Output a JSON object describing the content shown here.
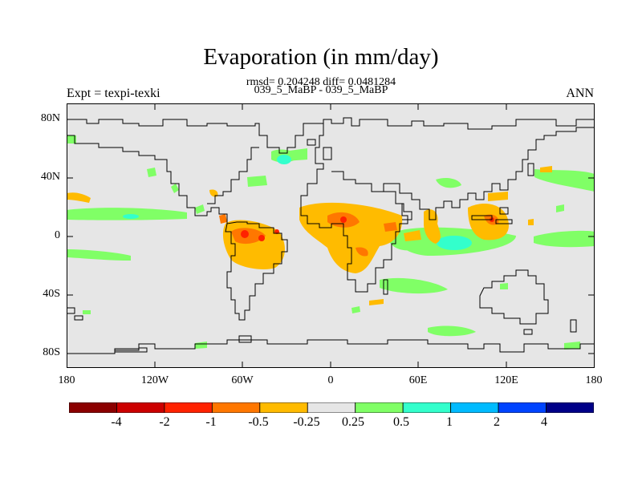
{
  "title": "Evaporation (in mm/day)",
  "stats_line": "rmsd= 0.204248 diff= 0.0481284",
  "subtitle": "039_5_MaBP - 039_5_MaBP",
  "left_label": "Expt = texpi-texki",
  "right_label": "ANN",
  "lat_ticks": [
    "80N",
    "40N",
    "0",
    "40S",
    "80S"
  ],
  "lon_ticks": [
    "180",
    "120W",
    "60W",
    "0",
    "60E",
    "120E",
    "180"
  ],
  "colorbar": {
    "colors": [
      "#8b0000",
      "#cc0000",
      "#ff2200",
      "#ff7700",
      "#ffbb00",
      "#e6e6e6",
      "#80ff66",
      "#33ffcc",
      "#00bbff",
      "#0044ff",
      "#000088"
    ],
    "labels": [
      "-4",
      "-2",
      "-1",
      "-0.5",
      "-0.25",
      "0.25",
      "0.5",
      "1",
      "2",
      "4"
    ]
  },
  "map": {
    "background_color": "#e6e6e6",
    "coastline_color": "#000000"
  }
}
